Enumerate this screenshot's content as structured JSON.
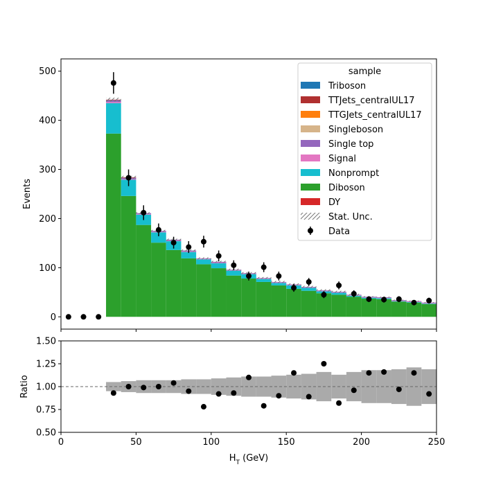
{
  "chart_data": [
    {
      "type": "bar",
      "stacked": true,
      "xlabel": "H_T (GeV)",
      "ylabel": "Events",
      "xlim": [
        0,
        250
      ],
      "ylim": [
        -25,
        525
      ],
      "xticks": [
        0,
        50,
        100,
        150,
        200,
        250
      ],
      "yticks": [
        0,
        100,
        200,
        300,
        400,
        500
      ],
      "bins": [
        [
          30,
          40
        ],
        [
          40,
          50
        ],
        [
          50,
          60
        ],
        [
          60,
          70
        ],
        [
          70,
          80
        ],
        [
          80,
          90
        ],
        [
          90,
          100
        ],
        [
          100,
          110
        ],
        [
          110,
          120
        ],
        [
          120,
          130
        ],
        [
          130,
          140
        ],
        [
          140,
          150
        ],
        [
          150,
          160
        ],
        [
          160,
          170
        ],
        [
          170,
          180
        ],
        [
          180,
          190
        ],
        [
          190,
          200
        ],
        [
          200,
          210
        ],
        [
          210,
          220
        ],
        [
          220,
          230
        ],
        [
          230,
          240
        ],
        [
          240,
          250
        ]
      ],
      "legend": {
        "title": "sample",
        "position": "upper right"
      },
      "series": [
        {
          "name": "DY",
          "color": "#d62728",
          "values": [
            0,
            0,
            0,
            0,
            0,
            0,
            0,
            0,
            0,
            0,
            0,
            0,
            0,
            0,
            0,
            0,
            0,
            0,
            0,
            0,
            0,
            0
          ]
        },
        {
          "name": "Diboson",
          "color": "#2ca02c",
          "values": [
            373,
            246,
            187,
            151,
            136,
            119,
            107,
            99,
            84,
            78,
            71,
            64,
            57,
            53,
            48,
            45,
            41,
            37,
            36,
            31,
            29,
            26
          ]
        },
        {
          "name": "Nonprompt",
          "color": "#17becf",
          "values": [
            62,
            33,
            21,
            21,
            18,
            13,
            10,
            10,
            10,
            9,
            6,
            5,
            7,
            6,
            4,
            4,
            2,
            2,
            2,
            1,
            1,
            1
          ]
        },
        {
          "name": "Signal",
          "color": "#e377c2",
          "values": [
            2,
            1,
            1,
            1,
            1,
            1,
            1,
            1,
            1,
            1,
            1,
            1,
            1,
            1,
            1,
            1,
            1,
            1,
            1,
            1,
            1,
            1
          ]
        },
        {
          "name": "Single top",
          "color": "#9467bd",
          "values": [
            4,
            3,
            2,
            2,
            2,
            2,
            1,
            2,
            1,
            1,
            1,
            1,
            1,
            1,
            1,
            1,
            1,
            1,
            1,
            1,
            1,
            1
          ]
        },
        {
          "name": "Singleboson",
          "color": "#d6b48a",
          "values": [
            0,
            0,
            0,
            0,
            0,
            0,
            0,
            0,
            0,
            0,
            0,
            0,
            0,
            0,
            0,
            0,
            0,
            0,
            0,
            0,
            0,
            0
          ]
        },
        {
          "name": "TTGJets_centralUL17",
          "color": "#ff7f0e",
          "values": [
            0,
            0,
            0,
            0,
            0,
            0,
            0,
            0,
            0,
            0,
            0,
            0,
            0,
            0,
            0,
            0,
            0,
            0,
            0,
            0,
            0,
            0
          ]
        },
        {
          "name": "TTJets_centralUL17",
          "color": "#b03030",
          "values": [
            1,
            1,
            0,
            0,
            0,
            0,
            0,
            0,
            0,
            0,
            0,
            0,
            0,
            0,
            0,
            0,
            0,
            0,
            0,
            0,
            0,
            0
          ]
        },
        {
          "name": "Triboson",
          "color": "#1f77b4",
          "values": [
            0,
            0,
            0,
            0,
            0,
            0,
            0,
            0,
            0,
            0,
            0,
            0,
            0,
            0,
            0,
            0,
            0,
            0,
            0,
            0,
            0,
            0
          ]
        }
      ],
      "stat_unc_label": "Stat. Unc.",
      "stat_unc": [
        4,
        3,
        2,
        2,
        2,
        2,
        2,
        2,
        2,
        2,
        2,
        2,
        2,
        2,
        2,
        2,
        2,
        1,
        1,
        1,
        1,
        1
      ],
      "data": {
        "name": "Data",
        "x": [
          5,
          15,
          25,
          35,
          45,
          55,
          65,
          75,
          85,
          95,
          105,
          115,
          125,
          135,
          145,
          155,
          165,
          175,
          185,
          195,
          205,
          215,
          225,
          235,
          245
        ],
        "y": [
          0,
          0,
          0,
          476,
          283,
          212,
          177,
          151,
          142,
          153,
          124,
          105,
          83,
          101,
          83,
          59,
          71,
          45,
          64,
          47,
          36,
          35,
          36,
          29,
          33
        ],
        "err": [
          0,
          0,
          0,
          22,
          17,
          15,
          13,
          12,
          12,
          12,
          11,
          10,
          9,
          10,
          9,
          8,
          8,
          7,
          8,
          7,
          6,
          6,
          6,
          5,
          6
        ]
      }
    },
    {
      "type": "scatter",
      "xlabel": "H_T (GeV)",
      "ylabel": "Ratio",
      "xlim": [
        0,
        250
      ],
      "ylim": [
        0.5,
        1.5
      ],
      "xticks": [
        0,
        50,
        100,
        150,
        200,
        250
      ],
      "yticks": [
        "0.50",
        "0.75",
        "1.00",
        "1.25",
        "1.50"
      ],
      "reference_line": 1.0,
      "x": [
        35,
        45,
        55,
        65,
        75,
        85,
        95,
        105,
        115,
        125,
        135,
        145,
        155,
        165,
        175,
        185,
        195,
        205,
        215,
        225,
        235,
        245
      ],
      "y": [
        0.93,
        1.0,
        0.99,
        1.0,
        1.04,
        0.95,
        0.78,
        0.92,
        0.93,
        1.1,
        0.79,
        0.9,
        1.15,
        0.89,
        1.25,
        0.82,
        0.96,
        1.15,
        1.16,
        0.97,
        1.15,
        0.92
      ],
      "unc_band": [
        0.05,
        0.06,
        0.07,
        0.07,
        0.07,
        0.08,
        0.08,
        0.09,
        0.1,
        0.11,
        0.11,
        0.12,
        0.13,
        0.14,
        0.16,
        0.13,
        0.16,
        0.18,
        0.18,
        0.19,
        0.21,
        0.19
      ]
    }
  ]
}
